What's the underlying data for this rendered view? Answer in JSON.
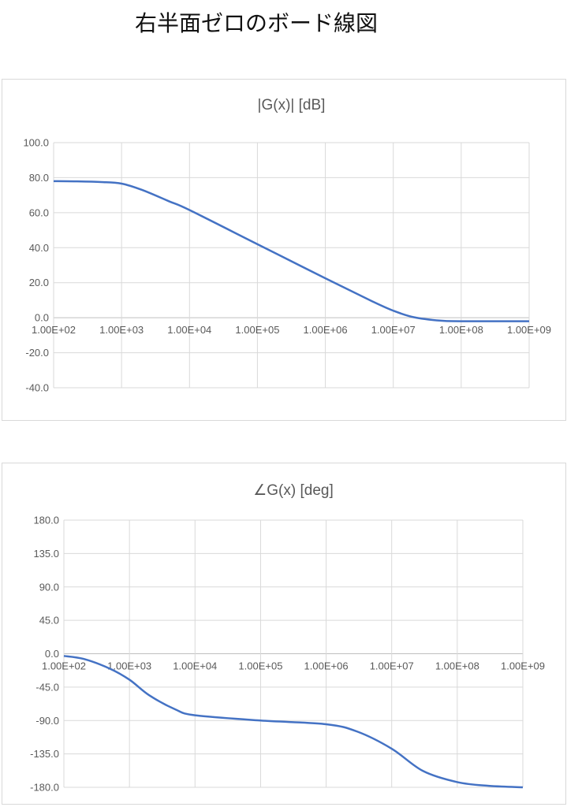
{
  "page": {
    "title": "右半面ゼロのボード線図"
  },
  "chart_data": [
    {
      "type": "line",
      "title": "|G(x)| [dB]",
      "xscale": "log",
      "xlim": [
        100,
        1000000000
      ],
      "x_tick_labels": [
        "1.00E+02",
        "1.00E+03",
        "1.00E+04",
        "1.00E+05",
        "1.00E+06",
        "1.00E+07",
        "1.00E+08",
        "1.00E+09"
      ],
      "ylim": [
        -40,
        100
      ],
      "y_tick_labels": [
        "100.0",
        "80.0",
        "60.0",
        "40.0",
        "20.0",
        "0.0",
        "-20.0",
        "-40.0"
      ],
      "grid": true,
      "series": [
        {
          "color": "#4472c4",
          "x": [
            100,
            200,
            500,
            1000,
            2000,
            5000,
            10000,
            100000,
            1000000,
            5000000,
            10000000,
            20000000,
            50000000,
            100000000,
            1000000000
          ],
          "y": [
            78,
            77.9,
            77.5,
            76.6,
            73,
            66.5,
            61.5,
            42,
            22.5,
            9.2,
            4,
            0.3,
            -1.7,
            -2,
            -2
          ]
        }
      ]
    },
    {
      "type": "line",
      "title": "∠G(x) [deg]",
      "xscale": "log",
      "xlim": [
        100,
        1000000000
      ],
      "x_tick_labels": [
        "1.00E+02",
        "1.00E+03",
        "1.00E+04",
        "1.00E+05",
        "1.00E+06",
        "1.00E+07",
        "1.00E+08",
        "1.00E+09"
      ],
      "ylim": [
        -180,
        180
      ],
      "y_tick_labels": [
        "180.0",
        "135.0",
        "90.0",
        "45.0",
        "0.0",
        "-45.0",
        "-90.0",
        "-135.0",
        "-180.0"
      ],
      "grid": true,
      "series": [
        {
          "color": "#4472c4",
          "x": [
            100,
            200,
            500,
            1000,
            2000,
            5000,
            10000,
            100000,
            1000000,
            3000000,
            10000000,
            30000000,
            100000000,
            300000000,
            1000000000
          ],
          "y": [
            -3,
            -7,
            -20,
            -35,
            -56,
            -75,
            -83,
            -90,
            -95,
            -105,
            -128,
            -158,
            -173,
            -178,
            -180
          ]
        }
      ]
    }
  ]
}
